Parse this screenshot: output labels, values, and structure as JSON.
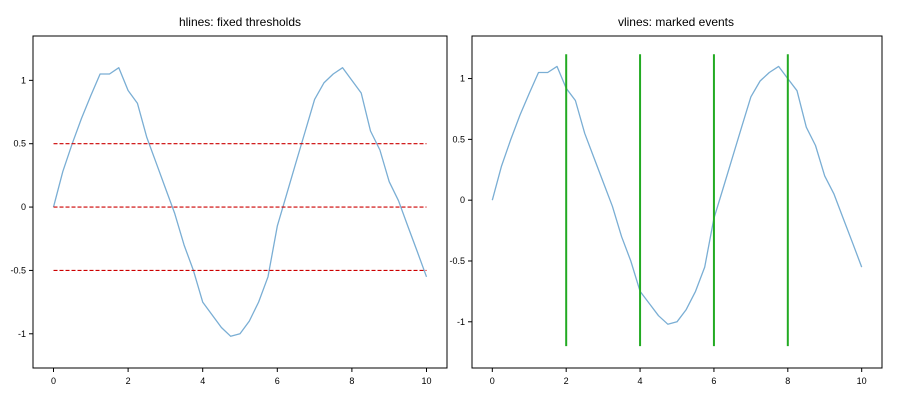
{
  "chart_data": [
    {
      "type": "line",
      "title": "hlines: fixed thresholds",
      "xlabel": "",
      "ylabel": "",
      "xlim": [
        -0.55,
        10.55
      ],
      "ylim": [
        -1.27,
        1.35
      ],
      "xticks": [
        0,
        2,
        4,
        6,
        8,
        10
      ],
      "xtick_labels": [
        "0",
        "2",
        "4",
        "6",
        "8",
        "10"
      ],
      "yticks": [
        -1,
        -0.5,
        0,
        0.5,
        1
      ],
      "ytick_labels": [
        "-1",
        "-0.5",
        "0",
        "0.5",
        "1"
      ],
      "grid": false,
      "line_color": "#7aaed4",
      "series": [
        {
          "x": [
            0,
            0.25,
            0.5,
            0.75,
            1,
            1.25,
            1.5,
            1.75,
            2,
            2.25,
            2.5,
            2.75,
            3,
            3.25,
            3.5,
            3.75,
            4,
            4.25,
            4.5,
            4.75,
            5,
            5.25,
            5.5,
            5.75,
            6,
            6.25,
            6.5,
            6.75,
            7,
            7.25,
            7.5,
            7.75,
            8,
            8.25,
            8.5,
            8.75,
            9,
            9.25,
            9.5,
            9.75,
            10
          ],
          "y": [
            0,
            0.28,
            0.5,
            0.7,
            0.88,
            1.05,
            1.05,
            1.1,
            0.92,
            0.82,
            0.55,
            0.35,
            0.15,
            -0.05,
            -0.3,
            -0.5,
            -0.75,
            -0.85,
            -0.95,
            -1.02,
            -1.0,
            -0.9,
            -0.75,
            -0.55,
            -0.15,
            0.1,
            0.35,
            0.6,
            0.85,
            0.98,
            1.05,
            1.1,
            1.0,
            0.9,
            0.6,
            0.45,
            0.2,
            0.05,
            -0.15,
            -0.35,
            -0.55
          ]
        }
      ],
      "hlines": {
        "values": [
          -0.5,
          0,
          0.5
        ],
        "xmin": 0,
        "xmax": 10,
        "color": "#cc0000",
        "style": "dashed"
      }
    },
    {
      "type": "line",
      "title": "vlines: marked events",
      "xlabel": "",
      "ylabel": "",
      "xlim": [
        -0.55,
        10.55
      ],
      "ylim": [
        -1.38,
        1.35
      ],
      "xticks": [
        0,
        2,
        4,
        6,
        8,
        10
      ],
      "xtick_labels": [
        "0",
        "2",
        "4",
        "6",
        "8",
        "10"
      ],
      "yticks": [
        -1,
        -0.5,
        0,
        0.5,
        1
      ],
      "ytick_labels": [
        "-1",
        "-0.5",
        "0",
        "0.5",
        "1"
      ],
      "grid": false,
      "line_color": "#7aaed4",
      "series": [
        {
          "x": [
            0,
            0.25,
            0.5,
            0.75,
            1,
            1.25,
            1.5,
            1.75,
            2,
            2.25,
            2.5,
            2.75,
            3,
            3.25,
            3.5,
            3.75,
            4,
            4.25,
            4.5,
            4.75,
            5,
            5.25,
            5.5,
            5.75,
            6,
            6.25,
            6.5,
            6.75,
            7,
            7.25,
            7.5,
            7.75,
            8,
            8.25,
            8.5,
            8.75,
            9,
            9.25,
            9.5,
            9.75,
            10
          ],
          "y": [
            0,
            0.28,
            0.5,
            0.7,
            0.88,
            1.05,
            1.05,
            1.1,
            0.92,
            0.82,
            0.55,
            0.35,
            0.15,
            -0.05,
            -0.3,
            -0.5,
            -0.75,
            -0.85,
            -0.95,
            -1.02,
            -1.0,
            -0.9,
            -0.75,
            -0.55,
            -0.15,
            0.1,
            0.35,
            0.6,
            0.85,
            0.98,
            1.05,
            1.1,
            1.0,
            0.9,
            0.6,
            0.45,
            0.2,
            0.05,
            -0.15,
            -0.35,
            -0.55
          ]
        }
      ],
      "vlines": {
        "values": [
          2,
          4,
          6,
          8
        ],
        "ymin": -1.2,
        "ymax": 1.2,
        "color": "#22aa22",
        "style": "solid"
      }
    }
  ]
}
